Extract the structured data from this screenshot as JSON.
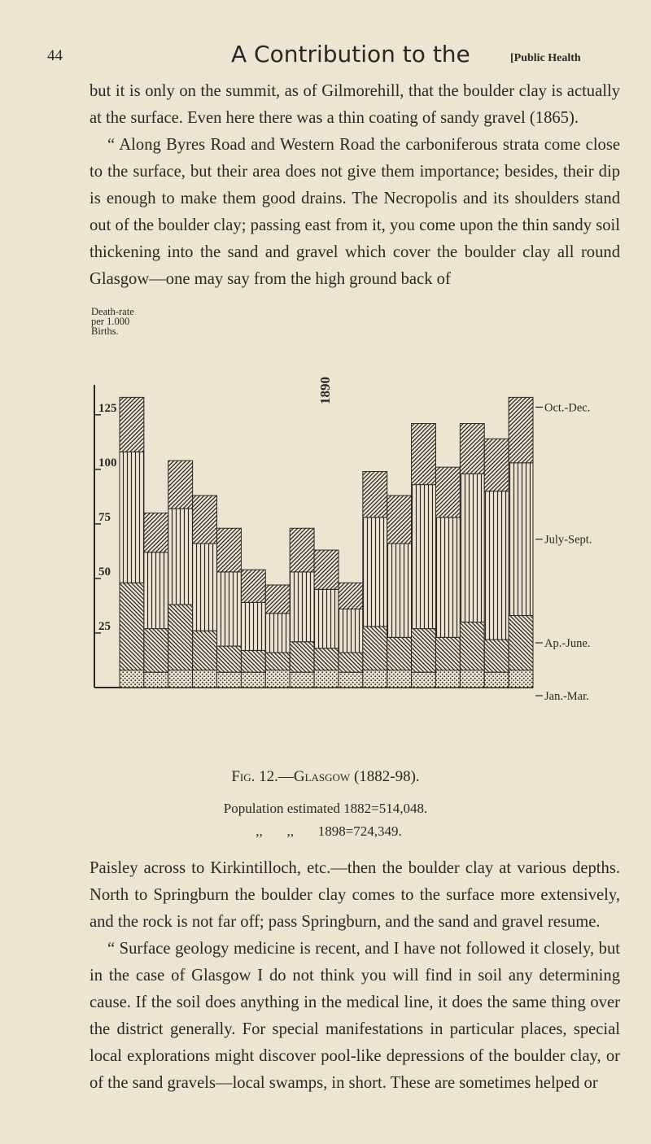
{
  "header": {
    "page_number": "44",
    "title": "A Contribution to the",
    "section": "[Public Health"
  },
  "paragraphs_top": [
    "but it is only on the summit, as of Gilmorehill, that the boulder clay is actually at the surface. Even here there was a thin coating of sandy gravel (1865).",
    "“ Along Byres Road and Western Road the carboniferous strata come close to the surface, but their area does not give them importance; besides, their dip is enough to make them good drains. The Necropolis and its shoulders stand out of the boulder clay; passing east from it, you come upon the thin sandy soil thickening into the sand and gravel which cover the boulder clay all round Glasgow—one may say from the high ground back of"
  ],
  "chart_data": {
    "type": "stacked-bar",
    "ylabel": "Death-rate per 1.000 Births.",
    "categories": [
      null,
      null,
      null,
      null,
      null,
      null,
      null,
      null,
      "1890",
      null,
      null,
      null,
      null,
      null,
      null,
      null,
      null
    ],
    "ylim": [
      0,
      135
    ],
    "yticks": [
      25,
      50,
      75,
      100,
      125
    ],
    "series": [
      {
        "name": "Jan.-Mar.",
        "color": "#2b2724",
        "pattern": "dots",
        "values": [
          8,
          7,
          8,
          8,
          7,
          7,
          8,
          7,
          8,
          7,
          8,
          8,
          7,
          8,
          8,
          7,
          8
        ]
      },
      {
        "name": "Ap.-June.",
        "color": "#2b2724",
        "pattern": "back-diagonal",
        "values": [
          40,
          20,
          30,
          18,
          12,
          10,
          8,
          14,
          10,
          9,
          20,
          15,
          20,
          15,
          22,
          15,
          25
        ]
      },
      {
        "name": "July-Sept.",
        "color": "#2b2724",
        "pattern": "vertical",
        "values": [
          60,
          35,
          44,
          40,
          34,
          22,
          18,
          32,
          27,
          20,
          50,
          43,
          66,
          55,
          68,
          68,
          70
        ]
      },
      {
        "name": "Oct.-Dec.",
        "color": "#2b2724",
        "pattern": "diagonal",
        "values": [
          25,
          18,
          22,
          22,
          20,
          15,
          13,
          20,
          18,
          12,
          21,
          22,
          28,
          23,
          23,
          24,
          30
        ]
      }
    ]
  },
  "caption": {
    "title": "Fig. 12.—Glasgow (1882-98).",
    "lines": [
      "Population estimated 1882=514,048.",
      ",,       ,,       1898=724,349."
    ]
  },
  "paragraphs_bottom": [
    "Paisley across to Kirkintilloch, etc.—then the boulder clay at various depths. North to Springburn the boulder clay comes to the surface more extensively, and the rock is not far off; pass Springburn, and the sand and gravel resume.",
    "“ Surface geology medicine is recent, and I have not followed it closely, but in the case of Glasgow I do not think you will find in soil any determining cause. If the soil does anything in the medical line, it does the same thing over the district generally. For special manifestations in particular places, special local explorations might discover pool-like depressions of the boulder clay, or of the sand gravels—local swamps, in short. These are sometimes helped or"
  ]
}
